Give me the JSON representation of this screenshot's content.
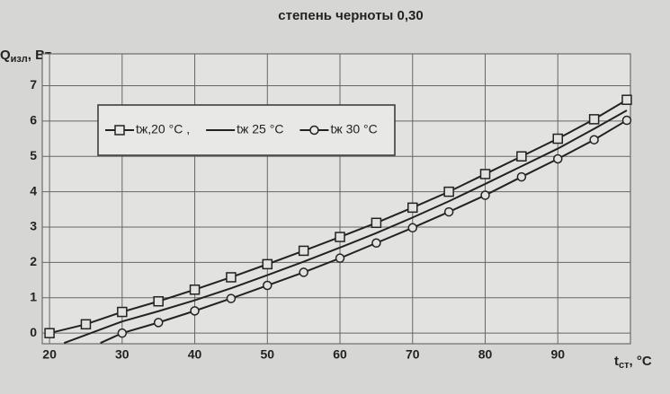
{
  "chart_data": {
    "type": "line",
    "title": "степень черноты 0,30",
    "y_label": {
      "main": "Q",
      "sub": "изл",
      "rest": ", Вт"
    },
    "x_label": {
      "main": "t",
      "sub": "ст",
      "rest": ", °C"
    },
    "xlim": [
      19,
      100
    ],
    "ylim": [
      -0.3,
      7.9
    ],
    "xticks": [
      20,
      30,
      40,
      50,
      60,
      70,
      80,
      90
    ],
    "yticks": [
      0,
      1,
      2,
      3,
      4,
      5,
      6,
      7
    ],
    "grid": true,
    "legend": "upper left",
    "series": [
      {
        "name": "tж,20 °C ,",
        "color": "#222",
        "marker": "square",
        "x": [
          20,
          25,
          30,
          35,
          40,
          45,
          50,
          55,
          60,
          65,
          70,
          75,
          80,
          85,
          90,
          95,
          99.5
        ],
        "values": [
          0,
          0.25,
          0.6,
          0.9,
          1.23,
          1.58,
          1.95,
          2.33,
          2.72,
          3.12,
          3.55,
          4.0,
          4.5,
          5.0,
          5.5,
          6.05,
          6.6
        ]
      },
      {
        "name": "tж 25 °C",
        "color": "#222",
        "marker": "none",
        "x": [
          22,
          25,
          30,
          35,
          40,
          45,
          50,
          55,
          60,
          65,
          70,
          75,
          80,
          85,
          90,
          95,
          99.5
        ],
        "values": [
          -0.28,
          -0.05,
          0.33,
          0.62,
          0.93,
          1.27,
          1.64,
          2.02,
          2.42,
          2.83,
          3.27,
          3.73,
          4.22,
          4.72,
          5.22,
          5.78,
          6.3
        ]
      },
      {
        "name": "tж 30 °C",
        "color": "#222",
        "marker": "circle",
        "x": [
          27,
          30,
          35,
          40,
          45,
          50,
          55,
          60,
          65,
          70,
          75,
          80,
          85,
          90,
          95,
          99.5
        ],
        "values": [
          -0.28,
          0,
          0.3,
          0.63,
          0.98,
          1.35,
          1.72,
          2.12,
          2.55,
          2.98,
          3.43,
          3.9,
          4.42,
          4.93,
          5.47,
          6.02
        ]
      }
    ]
  }
}
